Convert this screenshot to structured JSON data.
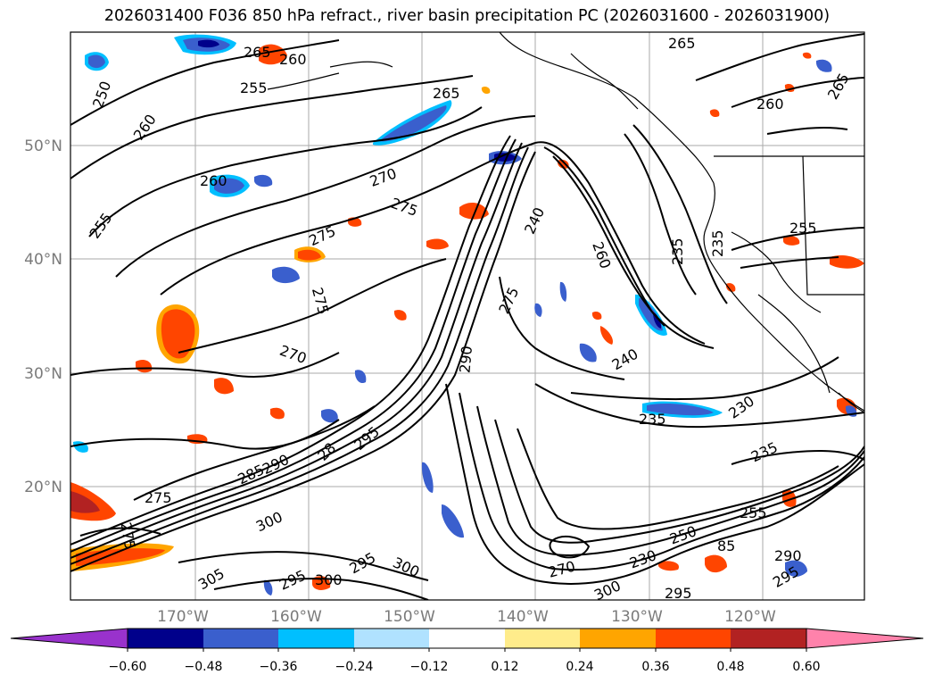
{
  "title": "2026031400 F036 850 hPa refract., river basin precipitation PC (2026031600 - 2026031900)",
  "latitude_labels": [
    "50°N",
    "40°N",
    "30°N",
    "20°N"
  ],
  "longitude_labels": [
    "170°W",
    "160°W",
    "150°W",
    "140°W",
    "130°W",
    "120°W"
  ],
  "contour_labels": [
    "265",
    "260",
    "250",
    "255",
    "260",
    "265",
    "265",
    "260",
    "265",
    "255",
    "260",
    "270",
    "275",
    "275",
    "255",
    "260",
    "235",
    "240",
    "235",
    "275",
    "270",
    "275",
    "290",
    "230",
    "240",
    "235",
    "28",
    "285",
    "290",
    "295",
    "275",
    "300",
    "255",
    "235",
    "275",
    "305",
    "295",
    "300",
    "295",
    "300",
    "270",
    "300",
    "250",
    "85",
    "290",
    "295",
    "295",
    "230"
  ],
  "colorbar": {
    "tick_labels": [
      "−0.60",
      "−0.48",
      "−0.36",
      "−0.24",
      "−0.12",
      "0.12",
      "0.24",
      "0.36",
      "0.48",
      "0.60"
    ],
    "colors": [
      "#9932cc",
      "#00008b",
      "#3a5fcd",
      "#00bfff",
      "#b0e2ff",
      "#ffffff",
      "#ffec8b",
      "#ffa500",
      "#ff4500",
      "#b22222",
      "#ff82ab"
    ]
  },
  "colors": {
    "negative_strong": "#3a5fcd",
    "negative_weak": "#00bfff",
    "negative_light": "#b0e2ff",
    "negative_dark": "#00008b",
    "positive_light": "#ffec8b",
    "positive_mid": "#ffa500",
    "positive_strong": "#ff4500",
    "positive_dark": "#b22222"
  }
}
